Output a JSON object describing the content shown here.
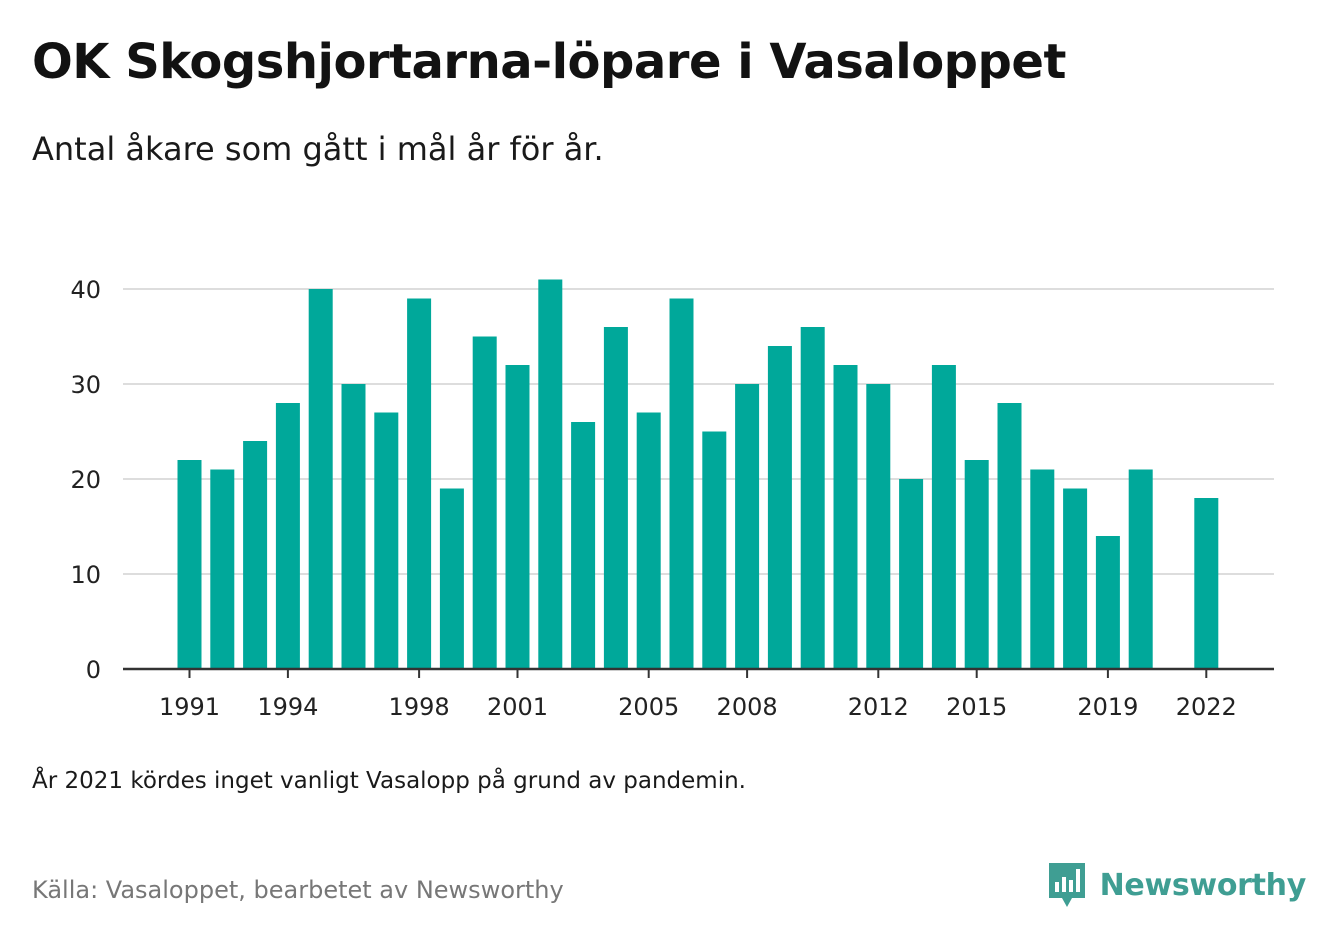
{
  "title": "OK Skogshjortarna-löpare i Vasaloppet",
  "subtitle": "Antal åkare som gått i mål år för år.",
  "note": "År 2021 kördes inget vanligt Vasalopp på grund av pandemin.",
  "source": "Källa: Vasaloppet, bearbetet av Newsworthy",
  "brand": {
    "name": "Newsworthy",
    "icon": "newsworthy-logo-icon"
  },
  "colors": {
    "bar": "#00a89a",
    "grid": "#dddddd",
    "axis": "#333333",
    "brand": "#3f9e93"
  },
  "chart_data": {
    "type": "bar",
    "categories": [
      1991,
      1992,
      1993,
      1994,
      1995,
      1996,
      1997,
      1998,
      1999,
      2000,
      2001,
      2002,
      2003,
      2004,
      2005,
      2006,
      2007,
      2008,
      2009,
      2010,
      2011,
      2012,
      2013,
      2014,
      2015,
      2016,
      2017,
      2018,
      2019,
      2020,
      2021,
      2022
    ],
    "values": [
      22,
      21,
      24,
      28,
      40,
      30,
      27,
      39,
      19,
      35,
      32,
      41,
      26,
      36,
      27,
      39,
      25,
      30,
      34,
      36,
      32,
      30,
      20,
      32,
      22,
      28,
      21,
      19,
      14,
      21,
      null,
      18
    ],
    "x_tick_labels": [
      "1991",
      "1994",
      "1998",
      "2001",
      "2005",
      "2008",
      "2012",
      "2015",
      "2019",
      "2022"
    ],
    "y_ticks": [
      0,
      10,
      20,
      30,
      40
    ],
    "ylim": [
      0,
      42
    ],
    "grid": true,
    "xlabel": "",
    "ylabel": ""
  }
}
